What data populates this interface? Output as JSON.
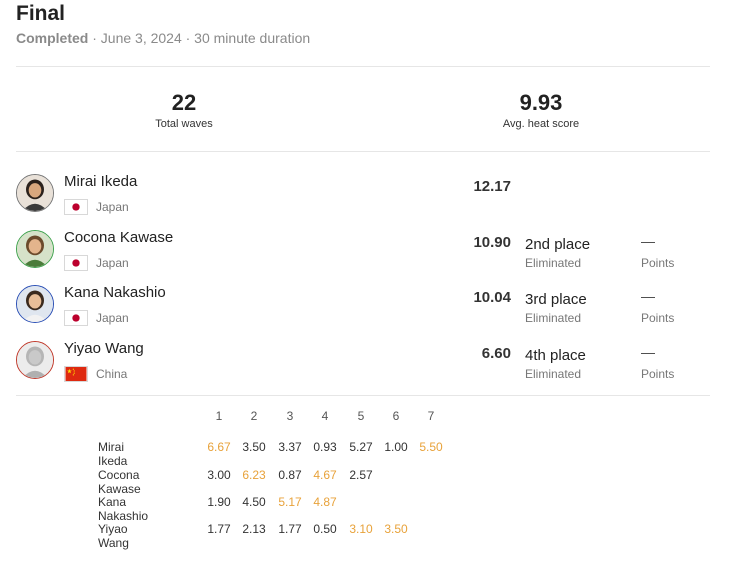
{
  "heat": {
    "title": "Final",
    "status": "Completed",
    "date": "· June 3, 2024 · 30 minute duration"
  },
  "stats": {
    "total_waves_value": "22",
    "total_waves_label": "Total waves",
    "avg_score_value": "9.93",
    "avg_score_label": "Avg. heat score"
  },
  "colors": {
    "highlight": "#e8a23a"
  },
  "surfers": [
    {
      "name": "Mirai Ikeda",
      "country": "Japan",
      "flag": "japan-flag",
      "score": "12.17",
      "place": "",
      "status": "",
      "points": "",
      "points_label": "",
      "ring": "#777777"
    },
    {
      "name": "Cocona Kawase",
      "country": "Japan",
      "flag": "japan-flag",
      "score": "10.90",
      "place": "2nd place",
      "status": "Eliminated",
      "points": "—",
      "points_label": "Points",
      "ring": "#3fa34d"
    },
    {
      "name": "Kana Nakashio",
      "country": "Japan",
      "flag": "japan-flag",
      "score": "10.04",
      "place": "3rd place",
      "status": "Eliminated",
      "points": "—",
      "points_label": "Points",
      "ring": "#2a4fb5"
    },
    {
      "name": "Yiyao Wang",
      "country": "China",
      "flag": "china-flag",
      "score": "6.60",
      "place": "4th place",
      "status": "Eliminated",
      "points": "—",
      "points_label": "Points",
      "ring": "#c0392b"
    }
  ],
  "waves": {
    "headers": [
      "1",
      "2",
      "3",
      "4",
      "5",
      "6",
      "7"
    ],
    "rows": [
      {
        "name": "Mirai Ikeda",
        "scores": [
          "6.67",
          "3.50",
          "3.37",
          "0.93",
          "5.27",
          "1.00",
          "5.50"
        ],
        "highlight": [
          true,
          false,
          false,
          false,
          false,
          false,
          true
        ]
      },
      {
        "name": "Cocona Kawase",
        "scores": [
          "3.00",
          "6.23",
          "0.87",
          "4.67",
          "2.57"
        ],
        "highlight": [
          false,
          true,
          false,
          true,
          false
        ]
      },
      {
        "name": "Kana Nakashio",
        "scores": [
          "1.90",
          "4.50",
          "5.17",
          "4.87"
        ],
        "highlight": [
          false,
          false,
          true,
          true
        ]
      },
      {
        "name": "Yiyao Wang",
        "scores": [
          "1.77",
          "2.13",
          "1.77",
          "0.50",
          "3.10",
          "3.50"
        ],
        "highlight": [
          false,
          false,
          false,
          false,
          true,
          true
        ]
      }
    ]
  }
}
